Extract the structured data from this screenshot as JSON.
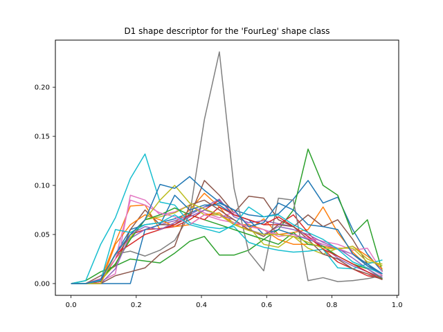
{
  "chart_data": {
    "type": "line",
    "title": "D1 shape descriptor for the 'FourLeg' shape class",
    "xlabel": "",
    "ylabel": "",
    "xlim": [
      -0.048,
      1.005
    ],
    "ylim": [
      -0.012,
      0.248
    ],
    "xticks": [
      0.0,
      0.2,
      0.4,
      0.6,
      0.8,
      1.0
    ],
    "xtick_labels": [
      "0.0",
      "0.2",
      "0.4",
      "0.6",
      "0.8",
      "1.0"
    ],
    "yticks": [
      0.0,
      0.05,
      0.1,
      0.15,
      0.2
    ],
    "ytick_labels": [
      "0.00",
      "0.05",
      "0.10",
      "0.15",
      "0.20"
    ],
    "grid": false,
    "x": [
      0.0,
      0.045,
      0.091,
      0.136,
      0.182,
      0.227,
      0.273,
      0.318,
      0.364,
      0.409,
      0.455,
      0.5,
      0.545,
      0.591,
      0.636,
      0.682,
      0.727,
      0.773,
      0.818,
      0.864,
      0.909,
      0.955
    ],
    "series": [
      {
        "color": "#1f77b4",
        "values": [
          0.0,
          0.0,
          0.002,
          0.03,
          0.055,
          0.06,
          0.062,
          0.066,
          0.072,
          0.078,
          0.082,
          0.075,
          0.07,
          0.068,
          0.071,
          0.086,
          0.105,
          0.082,
          0.088,
          0.055,
          0.03,
          0.012
        ]
      },
      {
        "color": "#ff7f0e",
        "values": [
          0.0,
          0.0,
          0.004,
          0.042,
          0.079,
          0.08,
          0.055,
          0.062,
          0.075,
          0.092,
          0.078,
          0.06,
          0.055,
          0.066,
          0.05,
          0.052,
          0.055,
          0.078,
          0.052,
          0.032,
          0.018,
          0.008
        ]
      },
      {
        "color": "#2ca02c",
        "values": [
          0.0,
          0.003,
          0.012,
          0.018,
          0.025,
          0.023,
          0.021,
          0.031,
          0.043,
          0.048,
          0.029,
          0.029,
          0.034,
          0.045,
          0.055,
          0.075,
          0.137,
          0.1,
          0.09,
          0.05,
          0.065,
          0.012
        ]
      },
      {
        "color": "#d62728",
        "values": [
          0.0,
          0.0,
          0.003,
          0.025,
          0.05,
          0.055,
          0.056,
          0.058,
          0.065,
          0.075,
          0.085,
          0.07,
          0.065,
          0.06,
          0.06,
          0.07,
          0.052,
          0.035,
          0.022,
          0.015,
          0.008,
          0.005
        ]
      },
      {
        "color": "#9467bd",
        "values": [
          0.0,
          0.0,
          0.003,
          0.02,
          0.046,
          0.055,
          0.06,
          0.064,
          0.07,
          0.078,
          0.086,
          0.068,
          0.062,
          0.064,
          0.061,
          0.058,
          0.048,
          0.038,
          0.026,
          0.018,
          0.012,
          0.006
        ]
      },
      {
        "color": "#8c564b",
        "values": [
          0.0,
          0.0,
          0.008,
          0.018,
          0.055,
          0.075,
          0.06,
          0.06,
          0.068,
          0.105,
          0.09,
          0.072,
          0.089,
          0.087,
          0.065,
          0.058,
          0.07,
          0.058,
          0.065,
          0.045,
          0.02,
          0.008
        ]
      },
      {
        "color": "#e377c2",
        "values": [
          0.0,
          0.0,
          0.002,
          0.01,
          0.09,
          0.085,
          0.07,
          0.073,
          0.08,
          0.072,
          0.067,
          0.073,
          0.06,
          0.055,
          0.05,
          0.048,
          0.047,
          0.043,
          0.04,
          0.034,
          0.036,
          0.012
        ]
      },
      {
        "color": "#7f7f7f",
        "values": [
          0.0,
          0.0,
          0.003,
          0.03,
          0.033,
          0.028,
          0.034,
          0.044,
          0.07,
          0.167,
          0.236,
          0.097,
          0.032,
          0.013,
          0.087,
          0.085,
          0.003,
          0.006,
          0.002,
          0.003,
          0.005,
          0.008
        ]
      },
      {
        "color": "#bcbd22",
        "values": [
          0.0,
          0.0,
          0.003,
          0.02,
          0.047,
          0.065,
          0.068,
          0.072,
          0.08,
          0.07,
          0.07,
          0.062,
          0.058,
          0.04,
          0.037,
          0.048,
          0.036,
          0.03,
          0.036,
          0.036,
          0.022,
          0.02
        ]
      },
      {
        "color": "#17becf",
        "values": [
          0.0,
          0.003,
          0.04,
          0.067,
          0.107,
          0.132,
          0.083,
          0.08,
          0.062,
          0.058,
          0.056,
          0.058,
          0.042,
          0.037,
          0.034,
          0.032,
          0.033,
          0.035,
          0.016,
          0.015,
          0.02,
          0.024
        ]
      },
      {
        "color": "#1f77b4",
        "values": [
          0.0,
          0.0,
          0.0,
          0.0,
          0.0,
          0.055,
          0.06,
          0.09,
          0.075,
          0.08,
          0.08,
          0.07,
          0.065,
          0.05,
          0.055,
          0.05,
          0.045,
          0.04,
          0.035,
          0.03,
          0.02,
          0.01
        ]
      },
      {
        "color": "#ff7f0e",
        "values": [
          0.0,
          0.0,
          0.0,
          0.04,
          0.06,
          0.07,
          0.065,
          0.058,
          0.06,
          0.07,
          0.072,
          0.06,
          0.06,
          0.055,
          0.045,
          0.04,
          0.04,
          0.038,
          0.035,
          0.038,
          0.028,
          0.015
        ]
      },
      {
        "color": "#2ca02c",
        "values": [
          0.0,
          0.0,
          0.005,
          0.02,
          0.045,
          0.065,
          0.07,
          0.077,
          0.07,
          0.065,
          0.06,
          0.055,
          0.05,
          0.045,
          0.04,
          0.052,
          0.04,
          0.038,
          0.028,
          0.02,
          0.015,
          0.005
        ]
      },
      {
        "color": "#d62728",
        "values": [
          0.0,
          0.0,
          0.002,
          0.03,
          0.04,
          0.05,
          0.055,
          0.06,
          0.07,
          0.065,
          0.078,
          0.07,
          0.065,
          0.06,
          0.068,
          0.058,
          0.048,
          0.035,
          0.028,
          0.02,
          0.012,
          0.004
        ]
      },
      {
        "color": "#9467bd",
        "values": [
          0.0,
          0.0,
          0.0,
          0.015,
          0.05,
          0.058,
          0.055,
          0.062,
          0.068,
          0.075,
          0.07,
          0.065,
          0.055,
          0.05,
          0.058,
          0.055,
          0.05,
          0.042,
          0.036,
          0.026,
          0.015,
          0.006
        ]
      },
      {
        "color": "#8c564b",
        "values": [
          0.0,
          0.0,
          0.0,
          0.008,
          0.012,
          0.016,
          0.03,
          0.038,
          0.08,
          0.085,
          0.075,
          0.065,
          0.055,
          0.048,
          0.06,
          0.058,
          0.045,
          0.03,
          0.025,
          0.015,
          0.01,
          0.004
        ]
      },
      {
        "color": "#e377c2",
        "values": [
          0.0,
          0.0,
          0.005,
          0.025,
          0.085,
          0.08,
          0.072,
          0.068,
          0.06,
          0.07,
          0.065,
          0.062,
          0.058,
          0.055,
          0.048,
          0.05,
          0.046,
          0.04,
          0.036,
          0.03,
          0.018,
          0.008
        ]
      },
      {
        "color": "#bcbd22",
        "values": [
          0.0,
          0.0,
          0.0,
          0.03,
          0.05,
          0.065,
          0.085,
          0.1,
          0.082,
          0.076,
          0.07,
          0.06,
          0.054,
          0.05,
          0.05,
          0.048,
          0.042,
          0.036,
          0.035,
          0.038,
          0.025,
          0.018
        ]
      },
      {
        "color": "#17becf",
        "values": [
          0.0,
          0.0,
          0.003,
          0.055,
          0.052,
          0.06,
          0.062,
          0.07,
          0.06,
          0.056,
          0.052,
          0.06,
          0.078,
          0.068,
          0.07,
          0.06,
          0.052,
          0.045,
          0.035,
          0.022,
          0.016,
          0.01
        ]
      },
      {
        "color": "#1f77b4",
        "values": [
          0.0,
          0.0,
          0.004,
          0.03,
          0.05,
          0.065,
          0.101,
          0.097,
          0.109,
          0.095,
          0.083,
          0.075,
          0.058,
          0.062,
          0.082,
          0.075,
          0.06,
          0.058,
          0.055,
          0.03,
          0.018,
          0.01
        ]
      }
    ]
  }
}
